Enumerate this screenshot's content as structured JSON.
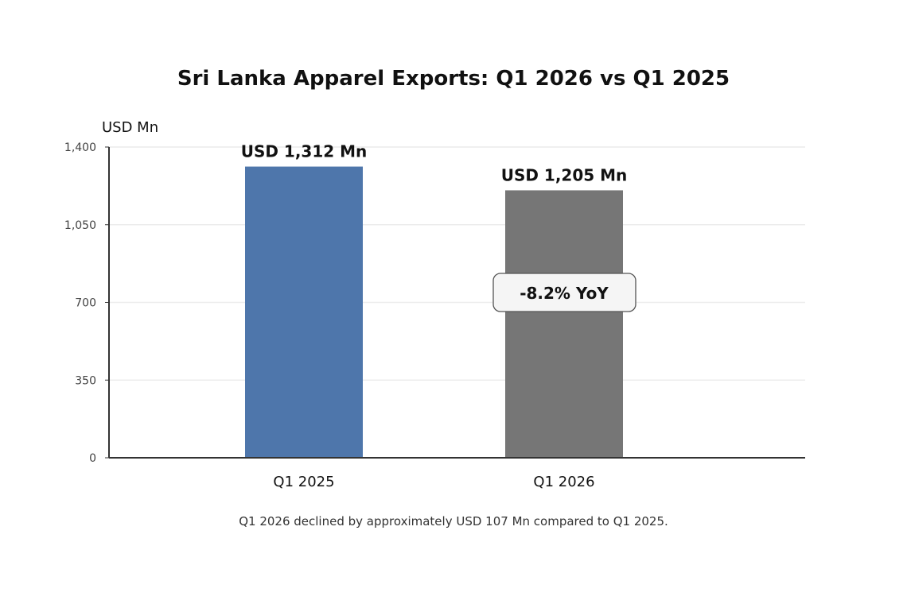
{
  "chart_data": {
    "type": "bar",
    "title": "Sri Lanka Apparel Exports: Q1 2026 vs Q1 2025",
    "ylabel": "USD Mn",
    "xlabel": "",
    "categories": [
      "Q1 2025",
      "Q1 2026"
    ],
    "values": [
      1312,
      1205
    ],
    "data_labels": [
      "USD 1,312 Mn",
      "USD 1,205 Mn"
    ],
    "colors": [
      "#4e76ab",
      "#767676"
    ],
    "ylim": [
      0,
      1400
    ],
    "yticks": [
      0,
      350,
      700,
      1050,
      1400
    ],
    "ytick_labels": [
      "0",
      "350",
      "700",
      "1,050",
      "1,400"
    ],
    "grid": true,
    "annotation": "-8.2% YoY",
    "footnote": "Q1 2026 declined by approximately USD 107 Mn compared to Q1 2025."
  }
}
